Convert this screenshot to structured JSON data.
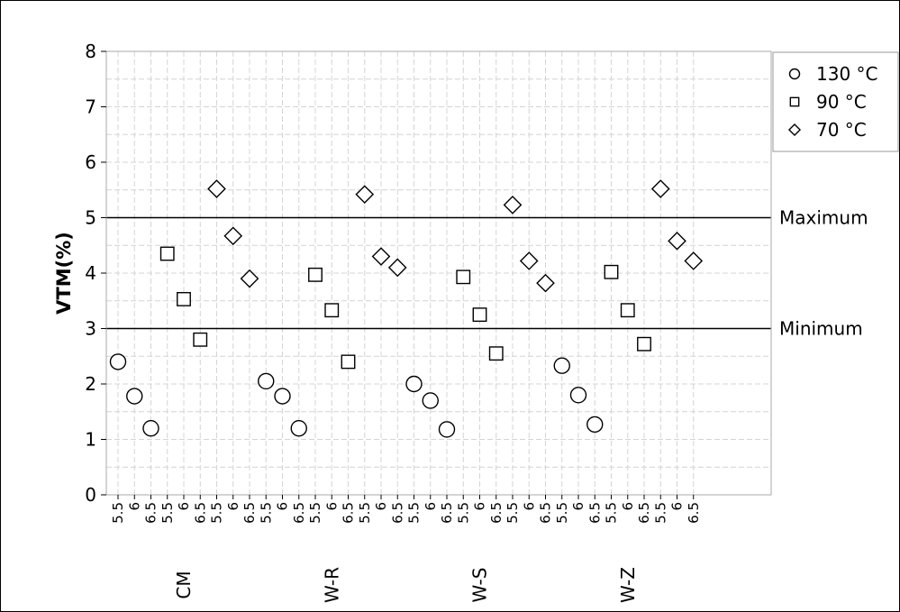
{
  "chart_data": {
    "type": "scatter",
    "ylabel": "VTM(%)",
    "ylim": [
      0,
      8
    ],
    "y_ticks": [
      0,
      1,
      2,
      3,
      4,
      5,
      6,
      7,
      8
    ],
    "grid": true,
    "legend_position": "top-right",
    "groups": [
      "CM",
      "W-R",
      "W-S",
      "W-Z"
    ],
    "sub_labels": [
      "5.5",
      "6",
      "6.5"
    ],
    "reference_lines": [
      {
        "label": "Maximum",
        "y": 5
      },
      {
        "label": "Minimum",
        "y": 3
      }
    ],
    "series": [
      {
        "name": "130 °C",
        "marker": "circle",
        "values": {
          "CM": [
            2.4,
            1.78,
            1.2
          ],
          "W-R": [
            2.05,
            1.78,
            1.2
          ],
          "W-S": [
            2.0,
            1.7,
            1.18
          ],
          "W-Z": [
            2.33,
            1.8,
            1.27
          ]
        }
      },
      {
        "name": "90 °C",
        "marker": "square",
        "values": {
          "CM": [
            4.35,
            3.53,
            2.8
          ],
          "W-R": [
            3.97,
            3.33,
            2.4
          ],
          "W-S": [
            3.93,
            3.25,
            2.55
          ],
          "W-Z": [
            4.02,
            3.33,
            2.72
          ]
        }
      },
      {
        "name": "70 °C",
        "marker": "diamond",
        "values": {
          "CM": [
            5.52,
            4.67,
            3.9
          ],
          "W-R": [
            5.42,
            4.3,
            4.1
          ],
          "W-S": [
            5.23,
            4.22,
            3.82
          ],
          "W-Z": [
            5.52,
            4.58,
            4.22
          ]
        }
      }
    ]
  }
}
